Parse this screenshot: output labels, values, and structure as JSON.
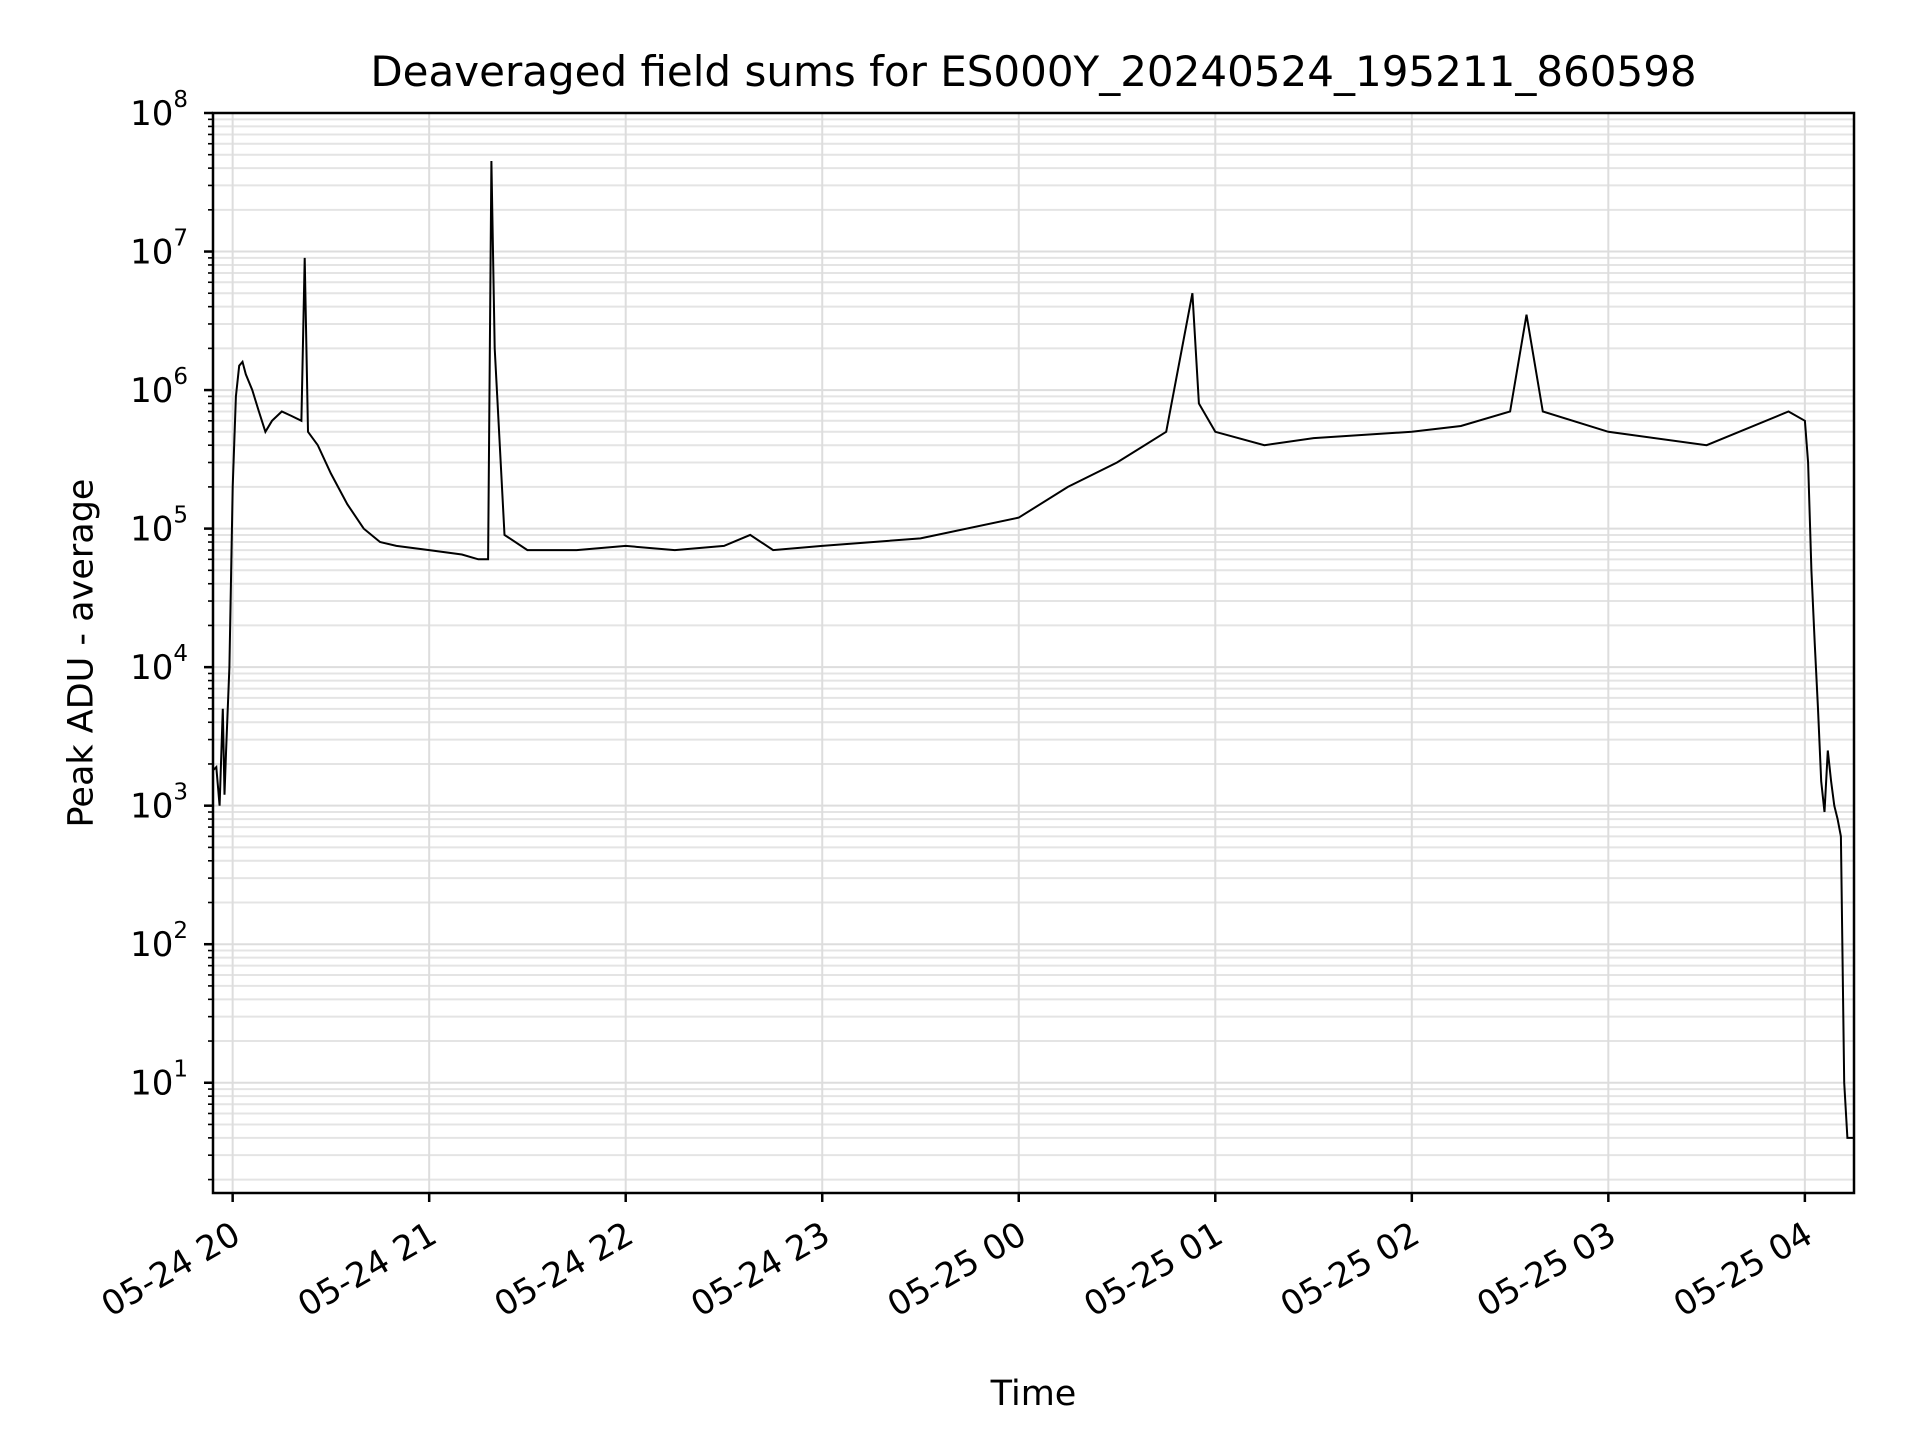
{
  "chart_data": {
    "type": "line",
    "title": "Deaveraged field sums for ES000Y_20240524_195211_860598",
    "xlabel": "Time",
    "ylabel": "Peak ADU - average",
    "x_type": "time",
    "xlim": [
      "2024-05-24 19:54",
      "2024-05-25 04:15"
    ],
    "y_scale": "log",
    "ylim": [
      1.6,
      100000000
    ],
    "y_ticks": [
      {
        "value": 10,
        "base": "10",
        "exp": "1"
      },
      {
        "value": 100,
        "base": "10",
        "exp": "2"
      },
      {
        "value": 1000,
        "base": "10",
        "exp": "3"
      },
      {
        "value": 10000,
        "base": "10",
        "exp": "4"
      },
      {
        "value": 100000,
        "base": "10",
        "exp": "5"
      },
      {
        "value": 1000000,
        "base": "10",
        "exp": "6"
      },
      {
        "value": 10000000,
        "base": "10",
        "exp": "7"
      },
      {
        "value": 100000000,
        "base": "10",
        "exp": "8"
      }
    ],
    "x_ticks": [
      {
        "value": "2024-05-24 20:00",
        "label": "05-24 20"
      },
      {
        "value": "2024-05-24 21:00",
        "label": "05-24 21"
      },
      {
        "value": "2024-05-24 22:00",
        "label": "05-24 22"
      },
      {
        "value": "2024-05-24 23:00",
        "label": "05-24 23"
      },
      {
        "value": "2024-05-25 00:00",
        "label": "05-25 00"
      },
      {
        "value": "2024-05-25 01:00",
        "label": "05-25 01"
      },
      {
        "value": "2024-05-25 02:00",
        "label": "05-25 02"
      },
      {
        "value": "2024-05-25 03:00",
        "label": "05-25 03"
      },
      {
        "value": "2024-05-25 04:00",
        "label": "05-25 04"
      }
    ],
    "grid": true,
    "legend": "none",
    "series": [
      {
        "color": "#000000",
        "x": [
          "2024-05-24 19:54",
          "2024-05-24 19:55",
          "2024-05-24 19:56",
          "2024-05-24 19:57",
          "2024-05-24 19:57:30",
          "2024-05-24 19:58",
          "2024-05-24 19:59",
          "2024-05-24 20:00",
          "2024-05-24 20:01",
          "2024-05-24 20:02",
          "2024-05-24 20:03",
          "2024-05-24 20:04",
          "2024-05-24 20:06",
          "2024-05-24 20:08",
          "2024-05-24 20:10",
          "2024-05-24 20:12",
          "2024-05-24 20:15",
          "2024-05-24 20:18",
          "2024-05-24 20:21",
          "2024-05-24 20:22",
          "2024-05-24 20:23",
          "2024-05-24 20:26",
          "2024-05-24 20:30",
          "2024-05-24 20:35",
          "2024-05-24 20:40",
          "2024-05-24 20:45",
          "2024-05-24 20:50",
          "2024-05-24 21:00",
          "2024-05-24 21:10",
          "2024-05-24 21:15",
          "2024-05-24 21:18",
          "2024-05-24 21:19",
          "2024-05-24 21:20",
          "2024-05-24 21:23",
          "2024-05-24 21:30",
          "2024-05-24 21:45",
          "2024-05-24 22:00",
          "2024-05-24 22:15",
          "2024-05-24 22:30",
          "2024-05-24 22:38",
          "2024-05-24 22:45",
          "2024-05-24 23:00",
          "2024-05-24 23:30",
          "2024-05-25 00:00",
          "2024-05-25 00:15",
          "2024-05-25 00:30",
          "2024-05-25 00:45",
          "2024-05-25 00:53",
          "2024-05-25 00:55",
          "2024-05-25 01:00",
          "2024-05-25 01:15",
          "2024-05-25 01:30",
          "2024-05-25 02:00",
          "2024-05-25 02:15",
          "2024-05-25 02:30",
          "2024-05-25 02:35",
          "2024-05-25 02:40",
          "2024-05-25 03:00",
          "2024-05-25 03:30",
          "2024-05-25 03:55",
          "2024-05-25 04:00",
          "2024-05-25 04:01",
          "2024-05-25 04:02",
          "2024-05-25 04:03",
          "2024-05-25 04:04",
          "2024-05-25 04:05",
          "2024-05-25 04:06",
          "2024-05-25 04:07",
          "2024-05-25 04:08",
          "2024-05-25 04:09",
          "2024-05-25 04:10",
          "2024-05-25 04:11",
          "2024-05-25 04:12",
          "2024-05-25 04:13",
          "2024-05-25 04:14",
          "2024-05-25 04:15"
        ],
        "y": [
          1800,
          1900,
          1000,
          5000,
          1200,
          2500,
          10000,
          200000,
          900000,
          1500000,
          1600000,
          1300000,
          1000000,
          700000,
          500000,
          600000,
          700000,
          650000,
          600000,
          9000000,
          500000,
          400000,
          250000,
          150000,
          100000,
          80000,
          75000,
          70000,
          65000,
          60000,
          60000,
          45000000,
          2000000,
          90000,
          70000,
          70000,
          75000,
          70000,
          75000,
          90000,
          70000,
          75000,
          85000,
          120000,
          200000,
          300000,
          500000,
          5000000,
          800000,
          500000,
          400000,
          450000,
          500000,
          550000,
          700000,
          3500000,
          700000,
          500000,
          400000,
          700000,
          600000,
          300000,
          50000,
          15000,
          5000,
          1500,
          900,
          2500,
          1500,
          1000,
          800,
          600,
          10,
          4,
          4,
          4
        ]
      }
    ]
  }
}
